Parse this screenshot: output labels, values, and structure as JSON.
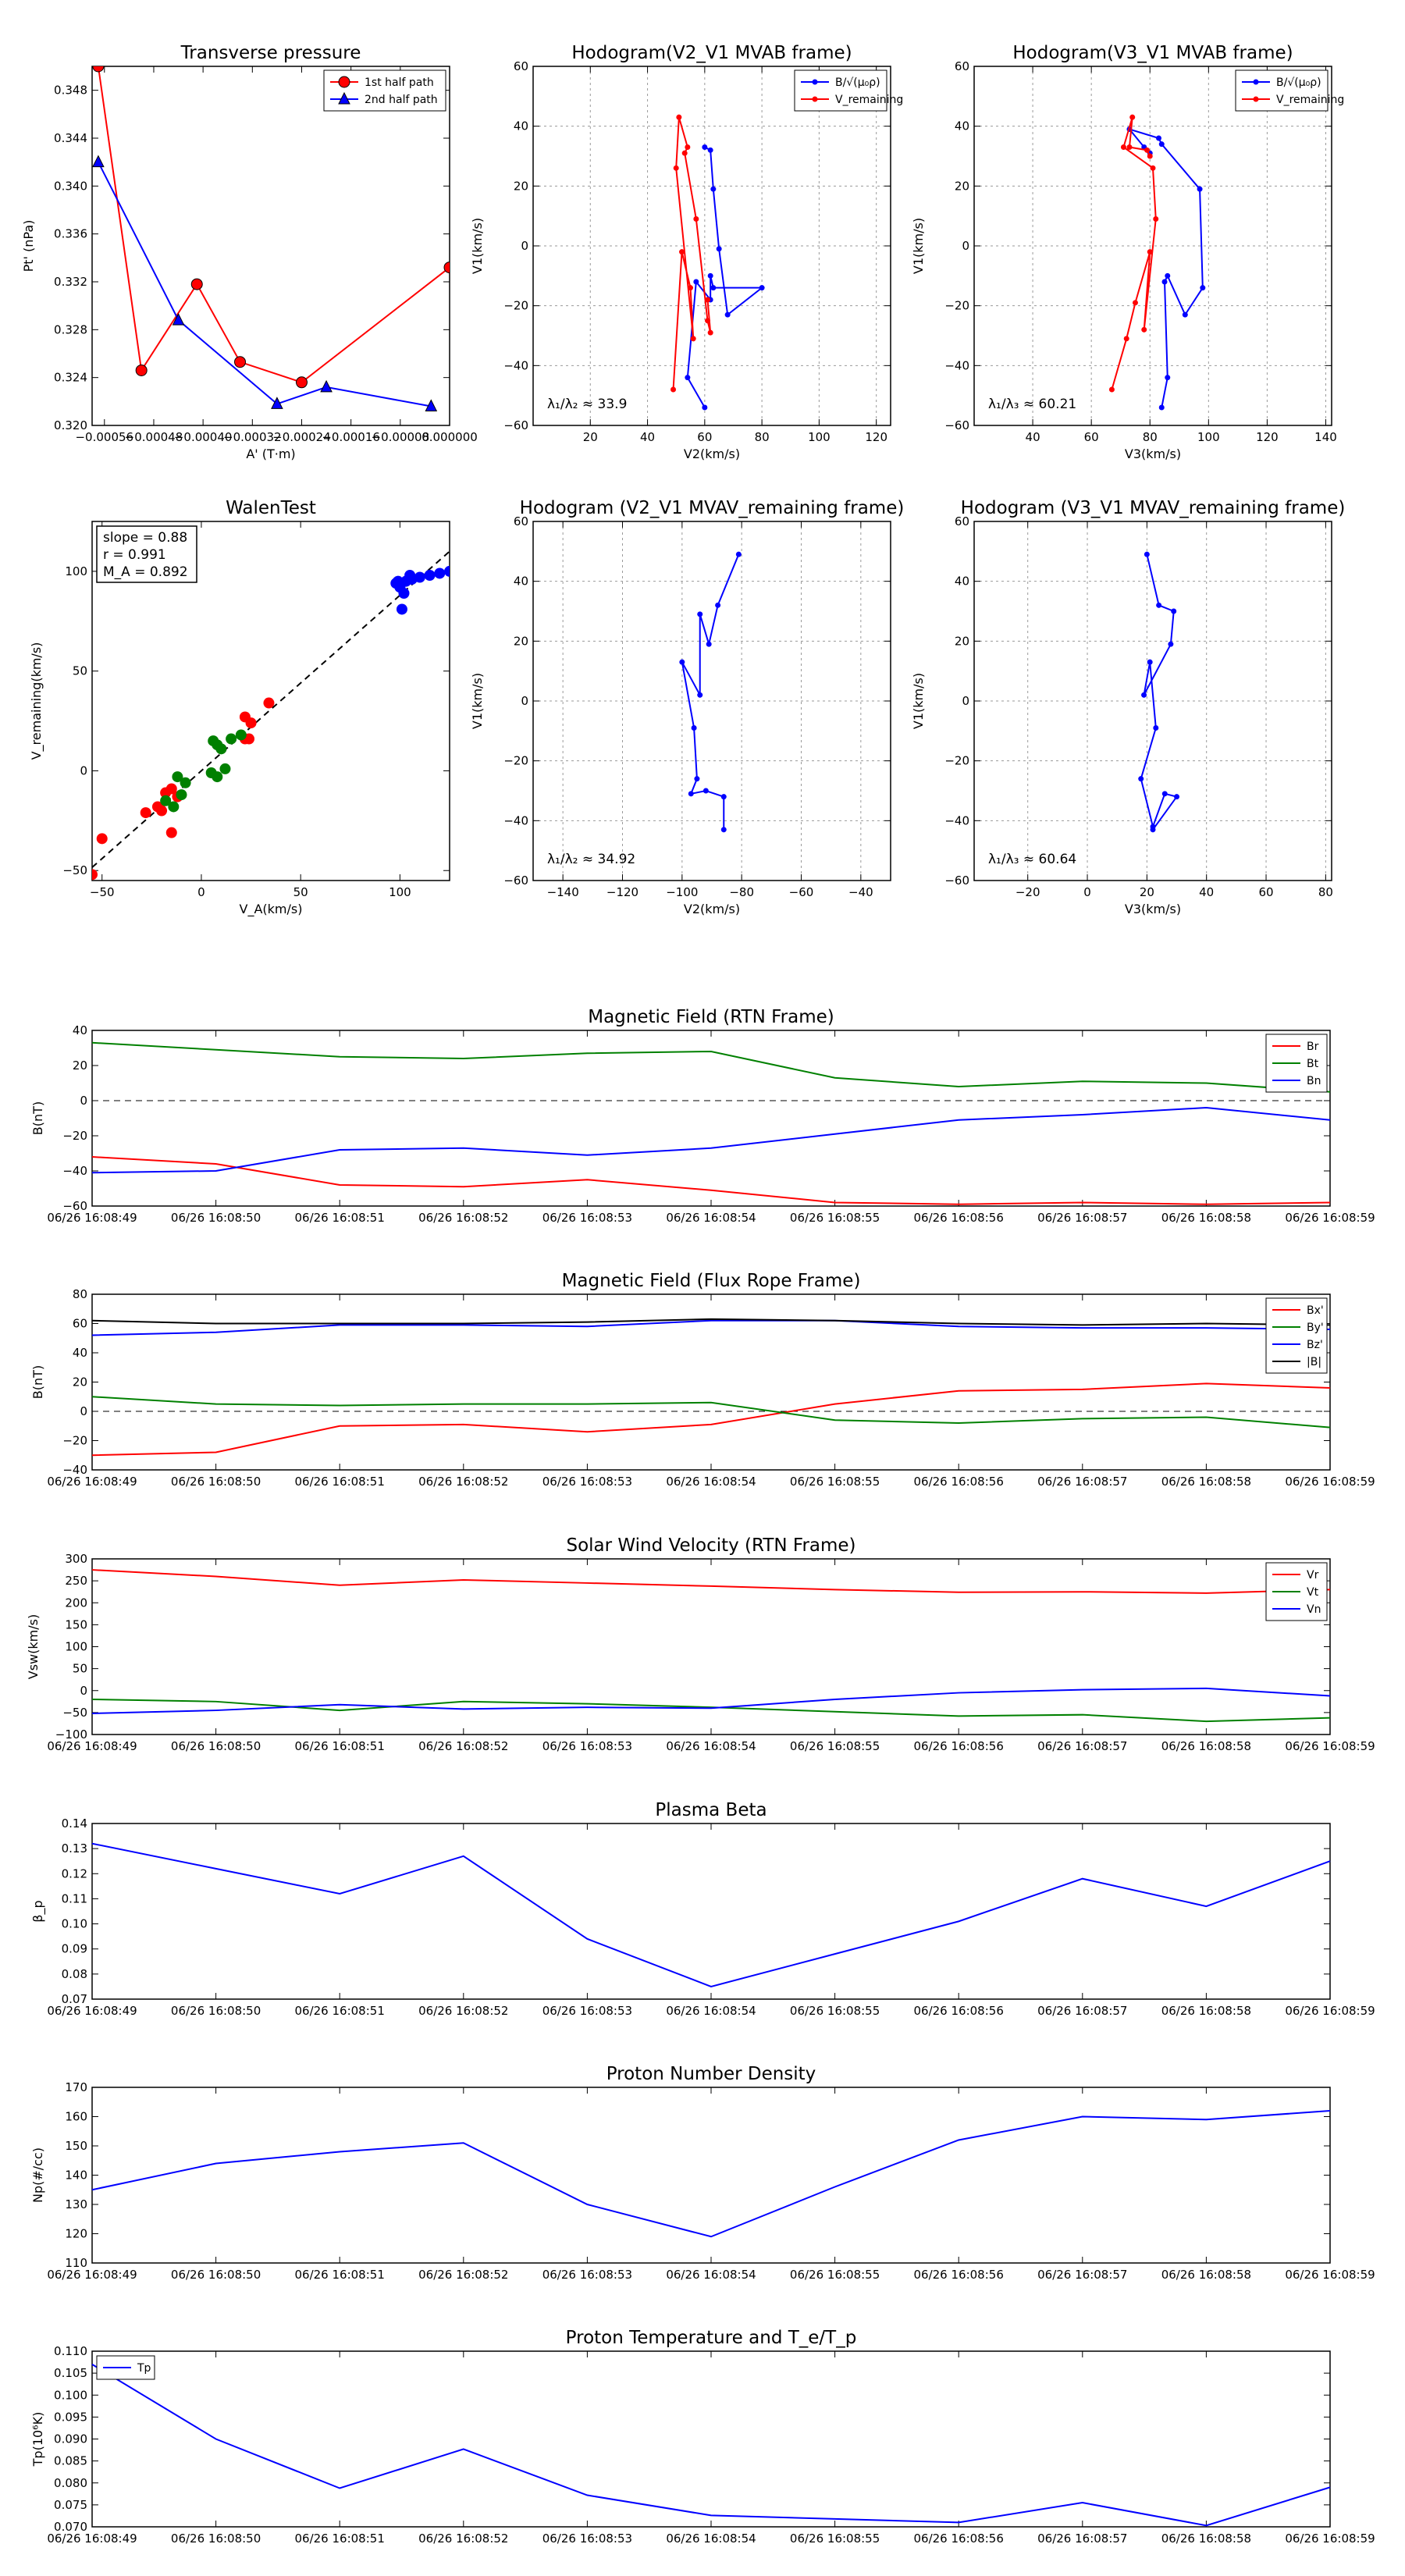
{
  "colors": {
    "red": "#ff0000",
    "blue": "#0000ff",
    "green": "#008000",
    "black": "#000000",
    "grid": "#808080"
  },
  "chart_data": [
    {
      "id": "transverse-pressure",
      "type": "line",
      "title": "Transverse pressure",
      "xlabel": "A' (T·m)",
      "ylabel": "Pt' (nPa)",
      "xlim": [
        -0.00058,
        0.0
      ],
      "ylim": [
        0.32,
        0.35
      ],
      "xticks": [
        -0.00056,
        -0.00048,
        -0.0004,
        -0.00032,
        -0.00024,
        -0.00016,
        -8e-05,
        0.0
      ],
      "xtick_labels": [
        "−0.00056",
        "−0.00048",
        "−0.00040",
        "−0.00032",
        "−0.00024",
        "−0.00016",
        "−0.00008",
        "0.000000"
      ],
      "yticks": [
        0.32,
        0.324,
        0.328,
        0.332,
        0.336,
        0.34,
        0.344,
        0.348
      ],
      "ytick_labels": [
        "0.320",
        "0.324",
        "0.328",
        "0.332",
        "0.336",
        "0.340",
        "0.344",
        "0.348"
      ],
      "grid": false,
      "legend": "top-right",
      "series": [
        {
          "name": "1st half path",
          "color": "#ff0000",
          "marker": "circle",
          "x": [
            -0.00057,
            -0.0005,
            -0.00041,
            -0.00034,
            -0.00024,
            0.0
          ],
          "y": [
            0.35,
            0.3246,
            0.3318,
            0.3253,
            0.3236,
            0.3332
          ]
        },
        {
          "name": "2nd half path",
          "color": "#0000ff",
          "marker": "triangle",
          "x": [
            -0.00057,
            -0.00044,
            -0.00028,
            -0.0002,
            -3e-05
          ],
          "y": [
            0.342,
            0.3288,
            0.3218,
            0.3232,
            0.3216
          ]
        }
      ]
    },
    {
      "id": "hodogram-v2-v1-mvab",
      "type": "line",
      "title": "Hodogram(V2_V1 MVAB frame)",
      "xlabel": "V2(km/s)",
      "ylabel": "V1(km/s)",
      "xlim": [
        0,
        125
      ],
      "ylim": [
        -60,
        60
      ],
      "xticks": [
        20,
        40,
        60,
        80,
        100,
        120
      ],
      "xtick_labels": [
        "20",
        "40",
        "60",
        "80",
        "100",
        "120"
      ],
      "yticks": [
        -60,
        -40,
        -20,
        0,
        20,
        40,
        60
      ],
      "ytick_labels": [
        "−60",
        "−40",
        "−20",
        "0",
        "20",
        "40",
        "60"
      ],
      "grid": true,
      "legend": "top-right",
      "annotation": "λ₁/λ₂ ≈ 33.9",
      "series": [
        {
          "name": "B/√(μ₀ρ)",
          "color": "#0000ff",
          "marker": "dot",
          "x": [
            60,
            54,
            57,
            62,
            62,
            63,
            80,
            68,
            65,
            63,
            62,
            60
          ],
          "y": [
            -54,
            -44,
            -12,
            -18,
            -10,
            -14,
            -14,
            -23,
            -1,
            19,
            32,
            33
          ]
        },
        {
          "name": "V_remaining",
          "color": "#ff0000",
          "marker": "dot",
          "x": [
            49,
            52,
            55,
            56,
            50,
            51,
            54,
            53,
            57,
            61,
            62,
            61
          ],
          "y": [
            -48,
            -2,
            -14,
            -31,
            26,
            43,
            33,
            31,
            9,
            -25,
            -29,
            -18
          ]
        }
      ]
    },
    {
      "id": "hodogram-v3-v1-mvab",
      "type": "line",
      "title": "Hodogram(V3_V1 MVAB frame)",
      "xlabel": "V3(km/s)",
      "ylabel": "V1(km/s)",
      "xlim": [
        20,
        142
      ],
      "ylim": [
        -60,
        60
      ],
      "xticks": [
        40,
        60,
        80,
        100,
        120,
        140
      ],
      "xtick_labels": [
        "40",
        "60",
        "80",
        "100",
        "120",
        "140"
      ],
      "yticks": [
        -60,
        -40,
        -20,
        0,
        20,
        40,
        60
      ],
      "ytick_labels": [
        "−60",
        "−40",
        "−20",
        "0",
        "20",
        "40",
        "60"
      ],
      "grid": true,
      "legend": "top-right",
      "annotation": "λ₁/λ₃ ≈ 60.21",
      "series": [
        {
          "name": "B/√(μ₀ρ)",
          "color": "#0000ff",
          "marker": "dot",
          "x": [
            84,
            86,
            85,
            86,
            92,
            98,
            97,
            84,
            83,
            73,
            78,
            80
          ],
          "y": [
            -54,
            -44,
            -12,
            -10,
            -23,
            -14,
            19,
            34,
            36,
            39,
            33,
            31
          ]
        },
        {
          "name": "V_remaining",
          "color": "#ff0000",
          "marker": "dot",
          "x": [
            67,
            72,
            75,
            80,
            78,
            82,
            81,
            71,
            74,
            73,
            79,
            80
          ],
          "y": [
            -48,
            -31,
            -19,
            -2,
            -28,
            9,
            26,
            33,
            43,
            33,
            32,
            30
          ]
        }
      ]
    },
    {
      "id": "walen-test",
      "type": "scatter",
      "title": "WalenTest",
      "xlabel": "V_A(km/s)",
      "ylabel": "V_remaining(km/s)",
      "xlim": [
        -55,
        125
      ],
      "ylim": [
        -55,
        125
      ],
      "xticks": [
        -50,
        0,
        50,
        100
      ],
      "xtick_labels": [
        "−50",
        "0",
        "50",
        "100"
      ],
      "yticks": [
        -50,
        0,
        50,
        100
      ],
      "ytick_labels": [
        "−50",
        "0",
        "50",
        "100"
      ],
      "grid": false,
      "fit": {
        "slope": 0.88,
        "intercept": 0
      },
      "stats": {
        "slope": "slope = 0.88",
        "r": "r = 0.991",
        "ma": "M_A = 0.892"
      },
      "series": [
        {
          "name": "red",
          "color": "#ff0000",
          "x": [
            -55,
            -50,
            -28,
            -22,
            -18,
            -20,
            -15,
            -12,
            24,
            22,
            25,
            34,
            22,
            -15
          ],
          "y": [
            -52,
            -34,
            -21,
            -18,
            -11,
            -20,
            -31,
            -13,
            16,
            27,
            24,
            34,
            16,
            -9
          ]
        },
        {
          "name": "green",
          "color": "#008000",
          "x": [
            -12,
            -10,
            -8,
            -14,
            -18,
            5,
            6,
            8,
            10,
            15,
            12,
            20,
            8
          ],
          "y": [
            -3,
            -12,
            -6,
            -18,
            -15,
            -1,
            15,
            13,
            11,
            16,
            1,
            18,
            -3
          ]
        },
        {
          "name": "blue",
          "color": "#0000ff",
          "x": [
            100,
            103,
            105,
            110,
            115,
            120,
            125,
            98,
            102,
            106,
            101,
            99
          ],
          "y": [
            92,
            95,
            98,
            97,
            98,
            99,
            100,
            94,
            89,
            96,
            81,
            95
          ]
        }
      ]
    },
    {
      "id": "hodogram-v2-v1-mvav",
      "type": "line",
      "title": "Hodogram (V2_V1 MVAV_remaining frame)",
      "xlabel": "V2(km/s)",
      "ylabel": "V1(km/s)",
      "xlim": [
        -150,
        -30
      ],
      "ylim": [
        -60,
        60
      ],
      "xticks": [
        -140,
        -120,
        -100,
        -80,
        -60,
        -40
      ],
      "xtick_labels": [
        "−140",
        "−120",
        "−100",
        "−80",
        "−60",
        "−40"
      ],
      "yticks": [
        -60,
        -40,
        -20,
        0,
        20,
        40,
        60
      ],
      "ytick_labels": [
        "−60",
        "−40",
        "−20",
        "0",
        "20",
        "40",
        "60"
      ],
      "grid": true,
      "annotation": "λ₁/λ₂ ≈ 34.92",
      "series": [
        {
          "name": "B",
          "color": "#0000ff",
          "marker": "dot",
          "x": [
            -81,
            -88,
            -91,
            -94,
            -94,
            -100,
            -96,
            -95,
            -97,
            -92,
            -86,
            -86
          ],
          "y": [
            49,
            32,
            19,
            29,
            2,
            13,
            -9,
            -26,
            -31,
            -30,
            -32,
            -43
          ]
        }
      ]
    },
    {
      "id": "hodogram-v3-v1-mvav",
      "type": "line",
      "title": "Hodogram (V3_V1 MVAV_remaining frame)",
      "xlabel": "V3(km/s)",
      "ylabel": "V1(km/s)",
      "xlim": [
        -38,
        82
      ],
      "ylim": [
        -60,
        60
      ],
      "xticks": [
        -20,
        0,
        20,
        40,
        60,
        80
      ],
      "xtick_labels": [
        "−20",
        "0",
        "20",
        "40",
        "60",
        "80"
      ],
      "yticks": [
        -60,
        -40,
        -20,
        0,
        20,
        40,
        60
      ],
      "ytick_labels": [
        "−60",
        "−40",
        "−20",
        "0",
        "20",
        "40",
        "60"
      ],
      "grid": true,
      "annotation": "λ₁/λ₃ ≈ 60.64",
      "series": [
        {
          "name": "B",
          "color": "#0000ff",
          "marker": "dot",
          "x": [
            20,
            24,
            29,
            28,
            19,
            21,
            23,
            18,
            22,
            26,
            30,
            22
          ],
          "y": [
            49,
            32,
            30,
            19,
            2,
            13,
            -9,
            -26,
            -42,
            -31,
            -32,
            -43
          ]
        }
      ]
    },
    {
      "id": "magnetic-field-rtn",
      "type": "line",
      "title": "Magnetic Field (RTN Frame)",
      "ylabel": "B(nT)",
      "ylim": [
        -60,
        40
      ],
      "yticks": [
        -60,
        -40,
        -20,
        0,
        20,
        40
      ],
      "ytick_labels": [
        "−60",
        "−40",
        "−20",
        "0",
        "20",
        "40"
      ],
      "zero_line": true,
      "legend": "top-right",
      "series": [
        {
          "name": "Br",
          "color": "#ff0000",
          "values": [
            -32,
            -36,
            -48,
            -49,
            -45,
            -51,
            -58,
            -59,
            -58,
            -59,
            -58
          ]
        },
        {
          "name": "Bt",
          "color": "#008000",
          "values": [
            33,
            29,
            25,
            24,
            27,
            28,
            13,
            8,
            11,
            10,
            5
          ]
        },
        {
          "name": "Bn",
          "color": "#0000ff",
          "values": [
            -41,
            -40,
            -28,
            -27,
            -31,
            -27,
            -19,
            -11,
            -8,
            -4,
            -11
          ]
        }
      ]
    },
    {
      "id": "magnetic-field-flux-rope",
      "type": "line",
      "title": "Magnetic Field (Flux Rope Frame)",
      "ylabel": "B(nT)",
      "ylim": [
        -40,
        80
      ],
      "yticks": [
        -40,
        -20,
        0,
        20,
        40,
        60,
        80
      ],
      "ytick_labels": [
        "−40",
        "−20",
        "0",
        "20",
        "40",
        "60",
        "80"
      ],
      "zero_line": true,
      "legend": "top-right",
      "series": [
        {
          "name": "Bx'",
          "color": "#ff0000",
          "values": [
            -30,
            -28,
            -10,
            -9,
            -14,
            -9,
            5,
            14,
            15,
            19,
            16
          ]
        },
        {
          "name": "By'",
          "color": "#008000",
          "values": [
            10,
            5,
            4,
            5,
            5,
            6,
            -6,
            -8,
            -5,
            -4,
            -11
          ]
        },
        {
          "name": "Bz'",
          "color": "#0000ff",
          "values": [
            52,
            54,
            59,
            59,
            58,
            62,
            62,
            58,
            57,
            57,
            56
          ]
        },
        {
          "name": "|B|",
          "color": "#000000",
          "values": [
            62,
            60,
            60,
            60,
            61,
            63,
            62,
            60,
            59,
            60,
            59
          ]
        }
      ]
    },
    {
      "id": "solar-wind-velocity",
      "type": "line",
      "title": "Solar Wind Velocity (RTN Frame)",
      "ylabel": "Vsw(km/s)",
      "ylim": [
        -100,
        300
      ],
      "yticks": [
        -100,
        -50,
        0,
        50,
        100,
        150,
        200,
        250,
        300
      ],
      "ytick_labels": [
        "−100",
        "−50",
        "0",
        "50",
        "100",
        "150",
        "200",
        "250",
        "300"
      ],
      "legend": "top-right",
      "series": [
        {
          "name": "Vr",
          "color": "#ff0000",
          "values": [
            275,
            260,
            240,
            252,
            245,
            238,
            230,
            224,
            225,
            222,
            230
          ]
        },
        {
          "name": "Vt",
          "color": "#008000",
          "values": [
            -20,
            -25,
            -45,
            -25,
            -30,
            -38,
            -48,
            -58,
            -55,
            -70,
            -62
          ]
        },
        {
          "name": "Vn",
          "color": "#0000ff",
          "values": [
            -52,
            -45,
            -32,
            -42,
            -38,
            -40,
            -20,
            -5,
            2,
            5,
            -12
          ]
        }
      ]
    },
    {
      "id": "plasma-beta",
      "type": "line",
      "title": "Plasma Beta",
      "ylabel": "β_p",
      "ylim": [
        0.07,
        0.14
      ],
      "yticks": [
        0.07,
        0.08,
        0.09,
        0.1,
        0.11,
        0.12,
        0.13,
        0.14
      ],
      "ytick_labels": [
        "0.07",
        "0.08",
        "0.09",
        "0.10",
        "0.11",
        "0.12",
        "0.13",
        "0.14"
      ],
      "series": [
        {
          "name": "beta",
          "color": "#0000ff",
          "values": [
            0.132,
            0.122,
            0.112,
            0.127,
            0.094,
            0.075,
            0.088,
            0.101,
            0.118,
            0.107,
            0.125
          ]
        }
      ]
    },
    {
      "id": "proton-number-density",
      "type": "line",
      "title": "Proton Number Density",
      "ylabel": "Np(#/cc)",
      "ylim": [
        110,
        170
      ],
      "yticks": [
        110,
        120,
        130,
        140,
        150,
        160,
        170
      ],
      "ytick_labels": [
        "110",
        "120",
        "130",
        "140",
        "150",
        "160",
        "170"
      ],
      "series": [
        {
          "name": "Np",
          "color": "#0000ff",
          "values": [
            135,
            144,
            148,
            151,
            130,
            119,
            136,
            152,
            160,
            159,
            162
          ]
        }
      ]
    },
    {
      "id": "proton-temperature",
      "type": "line",
      "title": "Proton Temperature and T_e/T_p",
      "ylabel": "Tp(10⁶K)",
      "ylim": [
        0.07,
        0.11
      ],
      "yticks": [
        0.07,
        0.075,
        0.08,
        0.085,
        0.09,
        0.095,
        0.1,
        0.105,
        0.11
      ],
      "ytick_labels": [
        "0.070",
        "0.075",
        "0.080",
        "0.085",
        "0.090",
        "0.095",
        "0.100",
        "0.105",
        "0.110"
      ],
      "legend": "top-left",
      "series": [
        {
          "name": "Tp",
          "color": "#0000ff",
          "values": [
            0.107,
            0.09,
            0.0788,
            0.0877,
            0.0772,
            0.0726,
            0.0718,
            0.071,
            0.0755,
            0.0703,
            0.079
          ]
        }
      ]
    }
  ],
  "time_labels": [
    "06/26 16:08:49",
    "06/26 16:08:50",
    "06/26 16:08:51",
    "06/26 16:08:52",
    "06/26 16:08:53",
    "06/26 16:08:54",
    "06/26 16:08:55",
    "06/26 16:08:56",
    "06/26 16:08:57",
    "06/26 16:08:58",
    "06/26 16:08:59"
  ]
}
